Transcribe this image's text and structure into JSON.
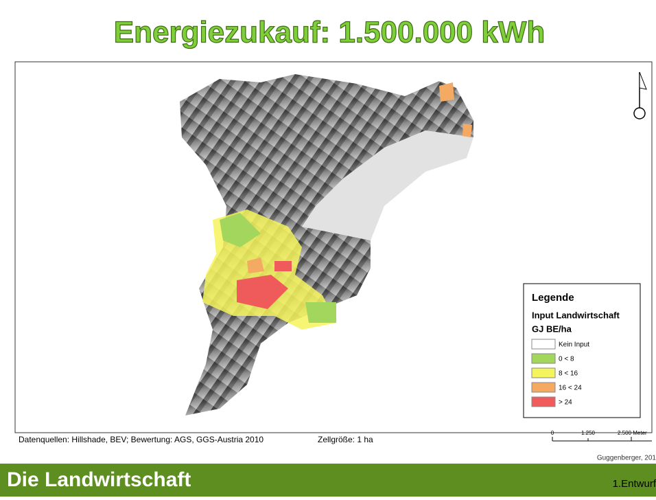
{
  "title": "Energiezukauf: 1.500.000 kWh",
  "legend": {
    "title": "Legende",
    "subtitle": "Input Landwirtschaft",
    "unit": "GJ BE/ha",
    "items": [
      {
        "label": "Kein Input",
        "color": "#ffffff"
      },
      {
        "label": "0 < 8",
        "color": "#a3d65c"
      },
      {
        "label": "8 < 16",
        "color": "#f4f45c"
      },
      {
        "label": "16 < 24",
        "color": "#f5aa64"
      },
      {
        "label": "> 24",
        "color": "#ef5b5b"
      }
    ]
  },
  "sources": "Datenquellen: Hillshade, BEV;  Bewertung: AGS, GGS-Austria 2010",
  "cell_size": "Zellgröße: 1 ha",
  "scale_labels": [
    "0",
    "1.250",
    "2.500 Meter"
  ],
  "credit": "Guggenberger, 201",
  "section_title": "Die Landwirtschaft",
  "version": "1.Entwurf"
}
